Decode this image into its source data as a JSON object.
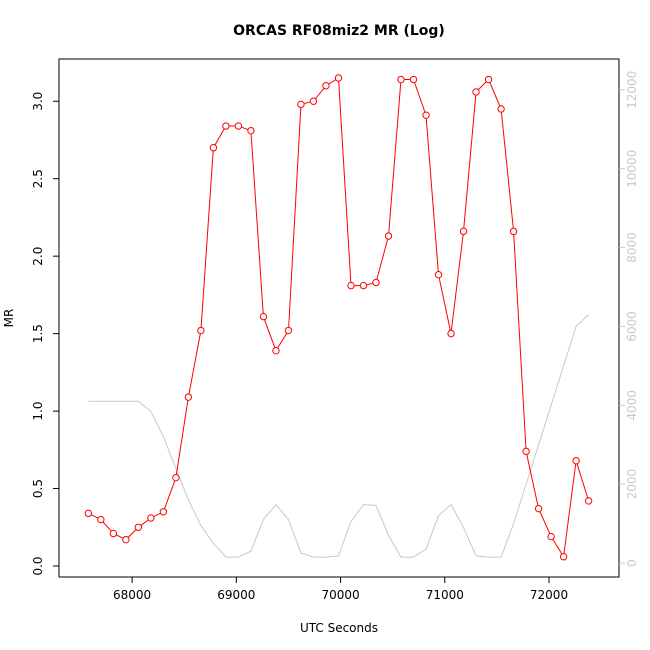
{
  "chart_data": {
    "type": "line",
    "title": "ORCAS RF08miz2 MR (Log)",
    "xlabel": "UTC Seconds",
    "ylabel": "MR",
    "xlim": [
      67500,
      72470
    ],
    "ylim": [
      0.0,
      3.15
    ],
    "ylim_right": [
      0,
      12300
    ],
    "x_ticks": [
      68000,
      69000,
      70000,
      71000,
      72000
    ],
    "y_ticks": [
      0.0,
      0.5,
      1.0,
      1.5,
      2.0,
      2.5,
      3.0
    ],
    "y_ticks_right": [
      0,
      2000,
      4000,
      6000,
      8000,
      10000,
      12000
    ],
    "grid": false,
    "series": [
      {
        "axis": "left",
        "color": "#ff0000",
        "style": "line+open-circles",
        "points": [
          [
            67580,
            0.34
          ],
          [
            67700,
            0.3
          ],
          [
            67820,
            0.21
          ],
          [
            67940,
            0.17
          ],
          [
            68060,
            0.25
          ],
          [
            68180,
            0.31
          ],
          [
            68300,
            0.35
          ],
          [
            68420,
            0.57
          ],
          [
            68540,
            1.09
          ],
          [
            68660,
            1.52
          ],
          [
            68780,
            2.7
          ],
          [
            68900,
            2.84
          ],
          [
            69020,
            2.84
          ],
          [
            69140,
            2.81
          ],
          [
            69260,
            1.61
          ],
          [
            69380,
            1.39
          ],
          [
            69500,
            1.52
          ],
          [
            69620,
            2.98
          ],
          [
            69740,
            3.0
          ],
          [
            69860,
            3.1
          ],
          [
            69980,
            3.15
          ],
          [
            70100,
            1.81
          ],
          [
            70220,
            1.81
          ],
          [
            70340,
            1.83
          ],
          [
            70460,
            2.13
          ],
          [
            70580,
            3.14
          ],
          [
            70700,
            3.14
          ],
          [
            70820,
            2.91
          ],
          [
            70940,
            1.88
          ],
          [
            71060,
            1.5
          ],
          [
            71180,
            2.16
          ],
          [
            71300,
            3.06
          ],
          [
            71420,
            3.14
          ],
          [
            71540,
            2.95
          ],
          [
            71660,
            2.16
          ],
          [
            71780,
            0.74
          ],
          [
            71900,
            0.37
          ],
          [
            72020,
            0.19
          ],
          [
            72140,
            0.06
          ],
          [
            72260,
            0.68
          ],
          [
            72380,
            0.42
          ]
        ]
      },
      {
        "axis": "right",
        "color": "#c8c8c8",
        "style": "line",
        "points": [
          [
            67580,
            4100
          ],
          [
            67700,
            4100
          ],
          [
            67820,
            4100
          ],
          [
            67940,
            4100
          ],
          [
            68060,
            4100
          ],
          [
            68180,
            3850
          ],
          [
            68300,
            3200
          ],
          [
            68420,
            2400
          ],
          [
            68540,
            1600
          ],
          [
            68660,
            950
          ],
          [
            68780,
            500
          ],
          [
            68900,
            150
          ],
          [
            69020,
            150
          ],
          [
            69140,
            300
          ],
          [
            69260,
            1100
          ],
          [
            69380,
            1480
          ],
          [
            69500,
            1100
          ],
          [
            69620,
            250
          ],
          [
            69740,
            150
          ],
          [
            69860,
            150
          ],
          [
            69980,
            180
          ],
          [
            70100,
            1050
          ],
          [
            70220,
            1480
          ],
          [
            70340,
            1460
          ],
          [
            70460,
            700
          ],
          [
            70580,
            150
          ],
          [
            70700,
            150
          ],
          [
            70820,
            350
          ],
          [
            70940,
            1200
          ],
          [
            71060,
            1480
          ],
          [
            71180,
            900
          ],
          [
            71300,
            180
          ],
          [
            71420,
            150
          ],
          [
            71540,
            150
          ],
          [
            71660,
            1000
          ],
          [
            71780,
            2000
          ],
          [
            71900,
            3000
          ],
          [
            72020,
            4000
          ],
          [
            72140,
            5000
          ],
          [
            72260,
            6000
          ],
          [
            72380,
            6300
          ]
        ]
      }
    ]
  }
}
